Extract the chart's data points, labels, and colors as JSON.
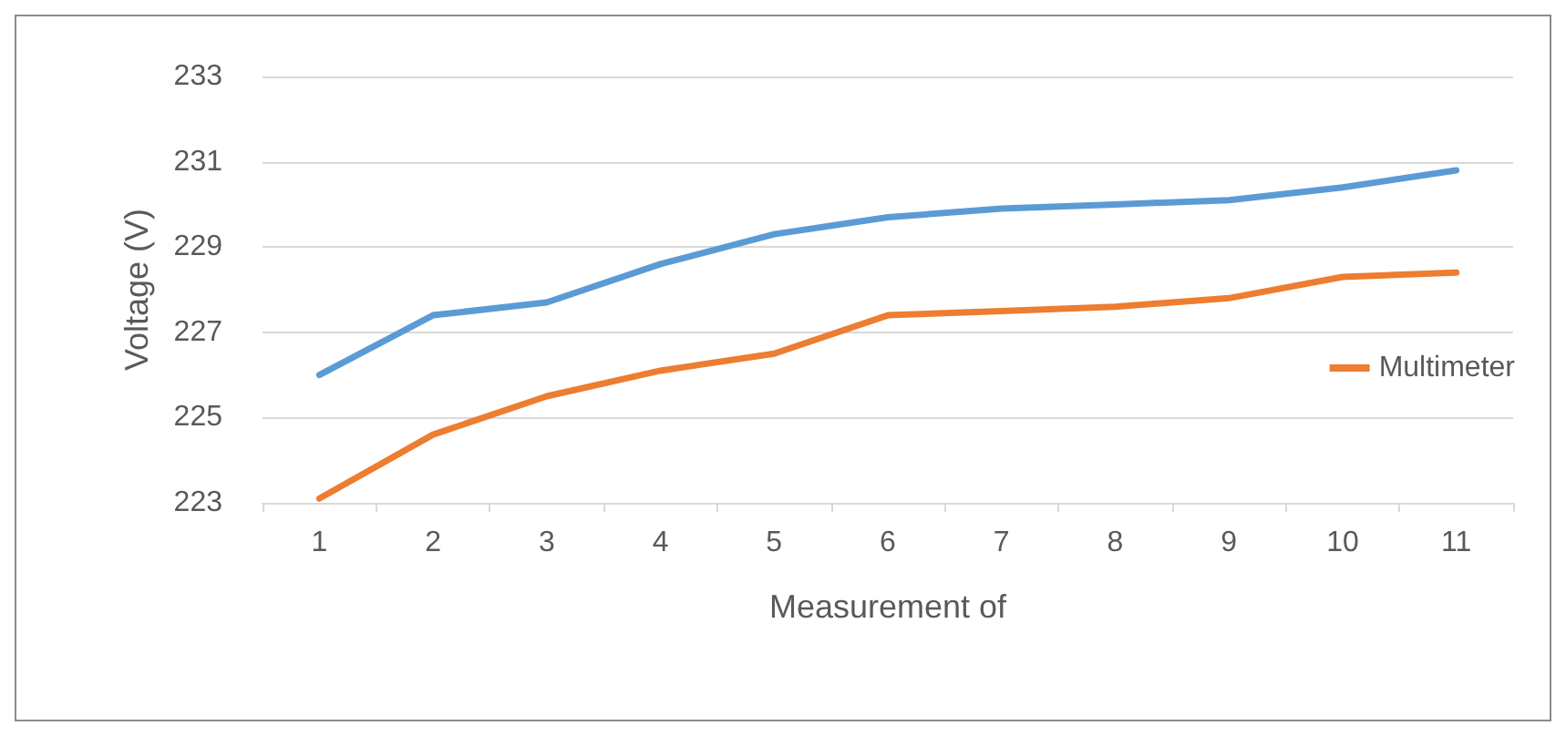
{
  "chart_data": {
    "type": "line",
    "xlabel": "Measurement of",
    "ylabel": "Voltage (V)",
    "categories": [
      "1",
      "2",
      "3",
      "4",
      "5",
      "6",
      "7",
      "8",
      "9",
      "10",
      "11"
    ],
    "series": [
      {
        "color": "#5b9bd5",
        "values": [
          226,
          227.4,
          227.7,
          228.6,
          229.3,
          229.7,
          229.9,
          230.0,
          230.1,
          230.4,
          230.8
        ]
      },
      {
        "name": "Multimeter",
        "color": "#ed7d31",
        "values": [
          223.1,
          224.6,
          225.5,
          226.1,
          226.5,
          227.4,
          227.5,
          227.6,
          227.8,
          228.3,
          228.4
        ]
      }
    ],
    "ylim": [
      223,
      233
    ],
    "yticks": [
      223,
      225,
      227,
      229,
      231,
      233
    ],
    "grid": "y",
    "legend": "right",
    "marker": "none",
    "line_style": "solid"
  }
}
